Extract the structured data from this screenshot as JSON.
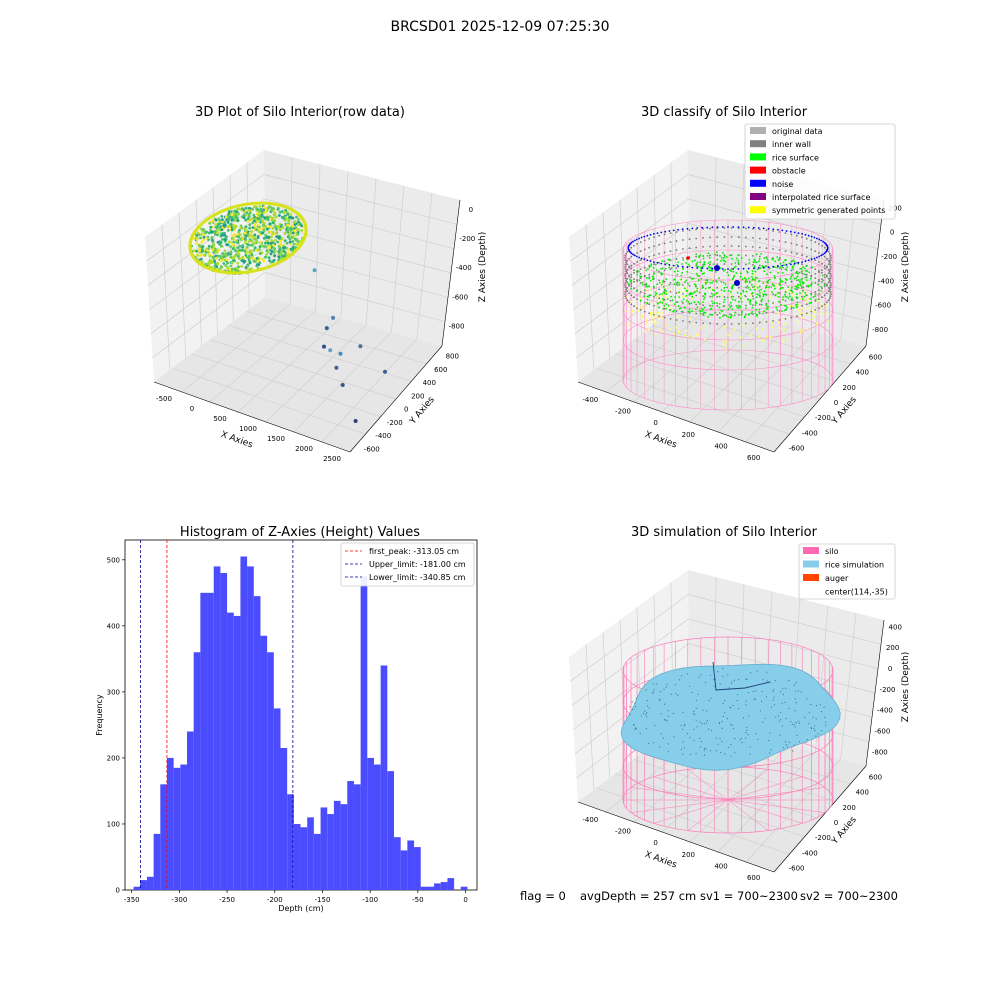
{
  "figure": {
    "suptitle": "BRCSD01 2025-12-09 07:25:30",
    "status_line": {
      "flag": "flag = 0",
      "avg_depth": "avgDepth = 257 cm",
      "sv1": "sv1 = 700~2300",
      "sv2": "sv2 = 700~2300"
    }
  },
  "chart_data": [
    {
      "type": "scatter3d",
      "title": "3D Plot of Silo Interior(row data)",
      "xlabel": "X Axies",
      "ylabel": "Y Axies",
      "zlabel": "Z Axies (Depth)",
      "x_ticks": [
        "-500",
        "0",
        "500",
        "1000",
        "1500",
        "2000",
        "2500"
      ],
      "y_ticks": [
        "-600",
        "-400",
        "-200",
        "0",
        "200",
        "400",
        "600",
        "800"
      ],
      "z_ticks": [
        "0",
        "-200",
        "-400",
        "-600",
        "-800"
      ],
      "xlim": [
        -600,
        2600
      ],
      "ylim": [
        -700,
        850
      ],
      "zlim": [
        -900,
        50
      ],
      "colormap": "viridis",
      "outlier_points": [
        {
          "x": 1150,
          "y": 200,
          "z": -320
        },
        {
          "x": 1500,
          "y": 150,
          "z": -560
        },
        {
          "x": 1300,
          "y": 250,
          "z": -700
        },
        {
          "x": 1400,
          "y": 100,
          "z": -740
        },
        {
          "x": 1550,
          "y": 50,
          "z": -720
        },
        {
          "x": 1650,
          "y": 120,
          "z": -760
        },
        {
          "x": 1700,
          "y": 0,
          "z": -790
        },
        {
          "x": 1800,
          "y": 300,
          "z": -770
        },
        {
          "x": 1900,
          "y": -100,
          "z": -830
        },
        {
          "x": 2300,
          "y": 200,
          "z": -820
        },
        {
          "x": 2400,
          "y": -400,
          "z": -860
        }
      ]
    },
    {
      "type": "scatter3d",
      "title": "3D classify of Silo Interior",
      "xlabel": "X Axies",
      "ylabel": "Y Axies",
      "zlabel": "Z Axies (Depth)",
      "x_ticks": [
        "-400",
        "-200",
        "0",
        "200",
        "400",
        "600"
      ],
      "y_ticks": [
        "-600",
        "-400",
        "-200",
        "0",
        "200",
        "400",
        "600"
      ],
      "z_ticks": [
        "200",
        "0",
        "-200",
        "-400",
        "-600",
        "-800"
      ],
      "legend_position": "upper right",
      "legend": [
        {
          "label": "original data",
          "color": "#b0b0b0"
        },
        {
          "label": "inner wall",
          "color": "#808080"
        },
        {
          "label": "rice surface",
          "color": "#00ff00"
        },
        {
          "label": "obstacle",
          "color": "#ff0000"
        },
        {
          "label": "noise",
          "color": "#0000ff"
        },
        {
          "label": "interpolated rice surface",
          "color": "#800080"
        },
        {
          "label": "symmetric generated points",
          "color": "#ffff00"
        }
      ]
    },
    {
      "type": "histogram",
      "title": "Histogram of Z-Axies (Height) Values",
      "xlabel": "Depth (cm)",
      "ylabel": "Frequency",
      "xlim": [
        -357,
        12
      ],
      "ylim": [
        0,
        530
      ],
      "bar_color": "#4c4cff",
      "bin_width": 7.0,
      "bin_start": -348.0,
      "x_ticks": [
        -350,
        -300,
        -250,
        -200,
        -150,
        -100,
        -50,
        0
      ],
      "y_ticks": [
        0,
        100,
        200,
        300,
        400,
        500
      ],
      "values": [
        5,
        15,
        20,
        85,
        160,
        200,
        185,
        190,
        240,
        360,
        450,
        450,
        490,
        480,
        420,
        415,
        505,
        490,
        445,
        385,
        360,
        275,
        215,
        145,
        100,
        95,
        110,
        85,
        125,
        115,
        135,
        130,
        165,
        160,
        475,
        200,
        190,
        340,
        180,
        80,
        60,
        75,
        65,
        5,
        5,
        10,
        12,
        18,
        0,
        5
      ],
      "vlines": [
        {
          "label": "first_peak: -313.05 cm",
          "x": -313.05,
          "color": "#ff0000"
        },
        {
          "label": "Upper_limit: -181.00 cm",
          "x": -181.0,
          "color": "#00008b"
        },
        {
          "label": "Lower_limit: -340.85 cm",
          "x": -340.85,
          "color": "#00008b"
        }
      ],
      "legend_position": "upper right"
    },
    {
      "type": "surface3d",
      "title": "3D simulation of Silo Interior",
      "xlabel": "X Axies",
      "ylabel": "Y Axies",
      "zlabel": "Z Axies (Depth)",
      "x_ticks": [
        "-400",
        "-200",
        "0",
        "200",
        "400",
        "600"
      ],
      "y_ticks": [
        "-600",
        "-400",
        "-200",
        "0",
        "200",
        "400",
        "600"
      ],
      "z_ticks": [
        "400",
        "200",
        "0",
        "-200",
        "-400",
        "-600",
        "-800"
      ],
      "legend_position": "upper right",
      "legend": [
        {
          "label": "silo",
          "color": "#ff69b4"
        },
        {
          "label": "rice simulation",
          "color": "#87ceeb"
        },
        {
          "label": "auger",
          "color": "#ff4500"
        },
        {
          "label": "center(114,-35)",
          "color": ""
        }
      ]
    }
  ]
}
